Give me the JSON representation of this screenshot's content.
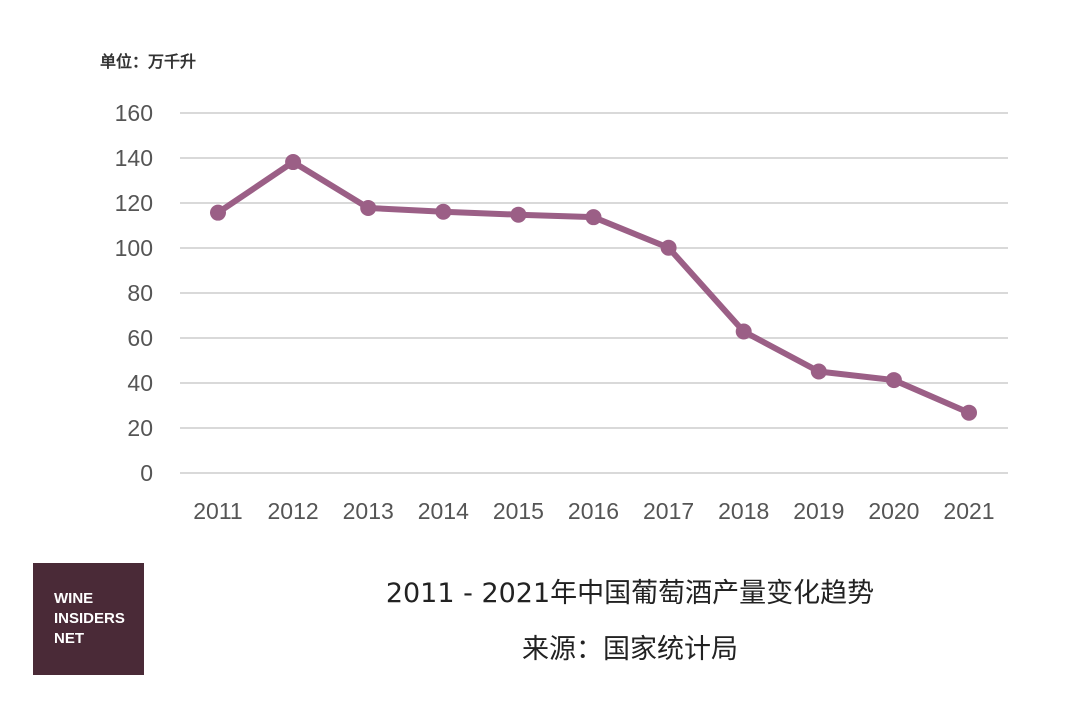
{
  "unit_label": "单位：万千升",
  "logo": {
    "lines": [
      "WINE",
      "INSIDERS",
      "NET"
    ]
  },
  "colors": {
    "series": "#9b5f86",
    "grid": "#d9d9d9",
    "logo_bg": "#4a2a37",
    "tick": "#555555"
  },
  "chart_data": {
    "type": "line",
    "title": "2011 - 2021年中国葡萄酒产量变化趋势",
    "source": "来源：国家统计局",
    "ylabel": "单位：万千升",
    "xlabel": "",
    "categories": [
      "2011",
      "2012",
      "2013",
      "2014",
      "2015",
      "2016",
      "2017",
      "2018",
      "2019",
      "2020",
      "2021"
    ],
    "series": [
      {
        "values": [
          115.7,
          138.2,
          117.8,
          116.1,
          114.8,
          113.7,
          100.1,
          62.9,
          45.1,
          41.3,
          26.8
        ]
      }
    ],
    "ylim": [
      0,
      160
    ],
    "yticks": [
      0,
      20,
      40,
      60,
      80,
      100,
      120,
      140,
      160
    ],
    "grid": true,
    "legend": "none",
    "markers": true
  }
}
